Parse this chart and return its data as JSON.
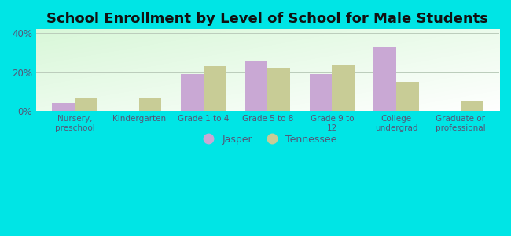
{
  "title": "School Enrollment by Level of School for Male Students",
  "categories": [
    "Nursery,\npreschool",
    "Kindergarten",
    "Grade 1 to 4",
    "Grade 5 to 8",
    "Grade 9 to\n12",
    "College\nundergrad",
    "Graduate or\nprofessional"
  ],
  "jasper": [
    4,
    0,
    19,
    26,
    19,
    33,
    0
  ],
  "tennessee": [
    7,
    7,
    23,
    22,
    24,
    15,
    5
  ],
  "jasper_color": "#c9a8d4",
  "tennessee_color": "#c8cc96",
  "background_color": "#00e5e5",
  "plot_bg_color": "#d8eeda",
  "ylim": [
    0,
    42
  ],
  "yticks": [
    0,
    20,
    40
  ],
  "ytick_labels": [
    "0%",
    "20%",
    "40%"
  ],
  "grid_color": "#bbccbb",
  "title_fontsize": 13,
  "title_color": "#111111",
  "tick_color": "#555577",
  "legend_labels": [
    "Jasper",
    "Tennessee"
  ],
  "bar_width": 0.35
}
